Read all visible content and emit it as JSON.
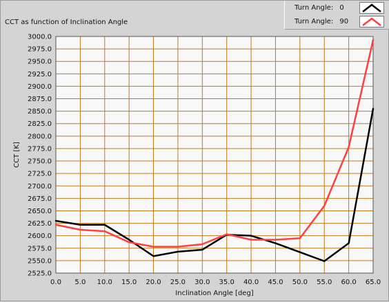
{
  "title": "CCT as function of Inclination Angle",
  "legend": [
    {
      "label": "Turn Angle:",
      "value": "0",
      "color": "#000000"
    },
    {
      "label": "Turn Angle:",
      "value": "90",
      "color": "#ff4040"
    }
  ],
  "chart_data": {
    "type": "line",
    "title": "CCT as function of Inclination Angle",
    "xlabel": "Inclination Angle [deg]",
    "ylabel": "CCT [K]",
    "xlim": [
      0,
      65
    ],
    "ylim": [
      2525,
      3000
    ],
    "x_ticks": [
      "0.0",
      "5.0",
      "10.0",
      "15.0",
      "20.0",
      "25.0",
      "30.0",
      "35.0",
      "40.0",
      "45.0",
      "50.0",
      "55.0",
      "60.0",
      "65.0"
    ],
    "y_ticks": [
      "2525.0",
      "2550.0",
      "2575.0",
      "2600.0",
      "2625.0",
      "2650.0",
      "2675.0",
      "2700.0",
      "2725.0",
      "2750.0",
      "2775.0",
      "2800.0",
      "2825.0",
      "2850.0",
      "2875.0",
      "2900.0",
      "2925.0",
      "2950.0",
      "2975.0",
      "3000.0"
    ],
    "grid": true,
    "grid_color": "#c07a1a",
    "plot_background": "#f8f8f8",
    "x": [
      0,
      5,
      10,
      15,
      20,
      25,
      30,
      35,
      40,
      45,
      50,
      55,
      60,
      65
    ],
    "series": [
      {
        "name": "Turn Angle: 0",
        "color": "#000000",
        "values": [
          2630,
          2622,
          2622,
          2592,
          2559,
          2568,
          2572,
          2602,
          2600,
          2585,
          2567,
          2549,
          2585,
          2855
        ]
      },
      {
        "name": "Turn Angle: 90",
        "color": "#ff4040",
        "values": [
          2622,
          2612,
          2609,
          2587,
          2578,
          2578,
          2583,
          2603,
          2592,
          2592,
          2595,
          2660,
          2778,
          2993
        ]
      }
    ]
  }
}
